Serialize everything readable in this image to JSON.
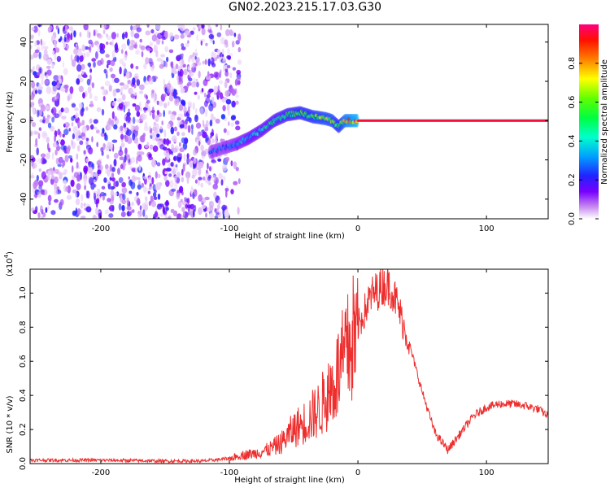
{
  "figure": {
    "title": "GN02.2023.215.17.03.G30"
  },
  "chart_data": [
    {
      "type": "heatmap",
      "xlabel": "Height of straight line (km)",
      "ylabel": "Frequency (Hz)",
      "xlim": [
        -255,
        148
      ],
      "ylim": [
        -50,
        49
      ],
      "xticks": [
        -200,
        -100,
        0,
        100
      ],
      "yticks": [
        -40,
        -20,
        0,
        20,
        40
      ],
      "xtick_labels": [
        "-200",
        "-100",
        "0",
        "100"
      ],
      "ytick_labels": [
        "-40",
        "-20",
        "0",
        "20",
        "40"
      ],
      "colorbar": {
        "label": "Normalized spectral amplitude",
        "range": [
          0,
          1
        ],
        "ticks": [
          0.0,
          0.2,
          0.4,
          0.6,
          0.8
        ],
        "tick_labels": [
          "0.0",
          "0.2",
          "0.4",
          "0.6",
          "0.8"
        ]
      },
      "noise_region_x": [
        -255,
        -100
      ],
      "signal_track": {
        "x": [
          -115,
          -105,
          -95,
          -85,
          -75,
          -65,
          -55,
          -45,
          -35,
          -25,
          -20,
          -15,
          -10,
          0,
          20,
          50,
          90,
          148
        ],
        "frequency": [
          -16,
          -14,
          -12,
          -9,
          -5,
          0,
          3,
          4,
          2,
          1,
          0,
          -3,
          0,
          0,
          0,
          0,
          0,
          0
        ],
        "amplitude": [
          0.3,
          0.3,
          0.35,
          0.4,
          0.45,
          0.5,
          0.55,
          0.6,
          0.65,
          0.7,
          0.7,
          0.6,
          0.8,
          0.95,
          0.95,
          0.95,
          0.95,
          0.95
        ]
      }
    },
    {
      "type": "line",
      "xlabel": "Height of straight line (km)",
      "ylabel": "SNR (10 * v/v)",
      "scale_note_base": "(x10",
      "scale_note_exp": "4",
      "scale_note_end": ")",
      "xlim": [
        -255,
        148
      ],
      "ylim": [
        0,
        1.14
      ],
      "xticks": [
        -200,
        -100,
        0,
        100
      ],
      "yticks": [
        0.0,
        0.2,
        0.4,
        0.6,
        0.8,
        1.0
      ],
      "xtick_labels": [
        "-200",
        "-100",
        "0",
        "100"
      ],
      "ytick_labels": [
        "0.0",
        "0.2",
        "0.4",
        "0.6",
        "0.8",
        "1.0"
      ],
      "series": [
        {
          "color": "#ee2d2d",
          "x": [
            -255,
            -200,
            -150,
            -120,
            -100,
            -90,
            -80,
            -70,
            -60,
            -50,
            -40,
            -30,
            -20,
            -10,
            0,
            10,
            20,
            25,
            30,
            40,
            50,
            60,
            70,
            80,
            90,
            100,
            110,
            120,
            130,
            140,
            148
          ],
          "y": [
            0.02,
            0.02,
            0.015,
            0.015,
            0.03,
            0.05,
            0.06,
            0.08,
            0.12,
            0.2,
            0.25,
            0.32,
            0.45,
            0.62,
            0.8,
            0.98,
            1.05,
            1.04,
            0.95,
            0.7,
            0.42,
            0.18,
            0.08,
            0.18,
            0.28,
            0.33,
            0.35,
            0.35,
            0.34,
            0.32,
            0.28
          ]
        }
      ]
    }
  ]
}
